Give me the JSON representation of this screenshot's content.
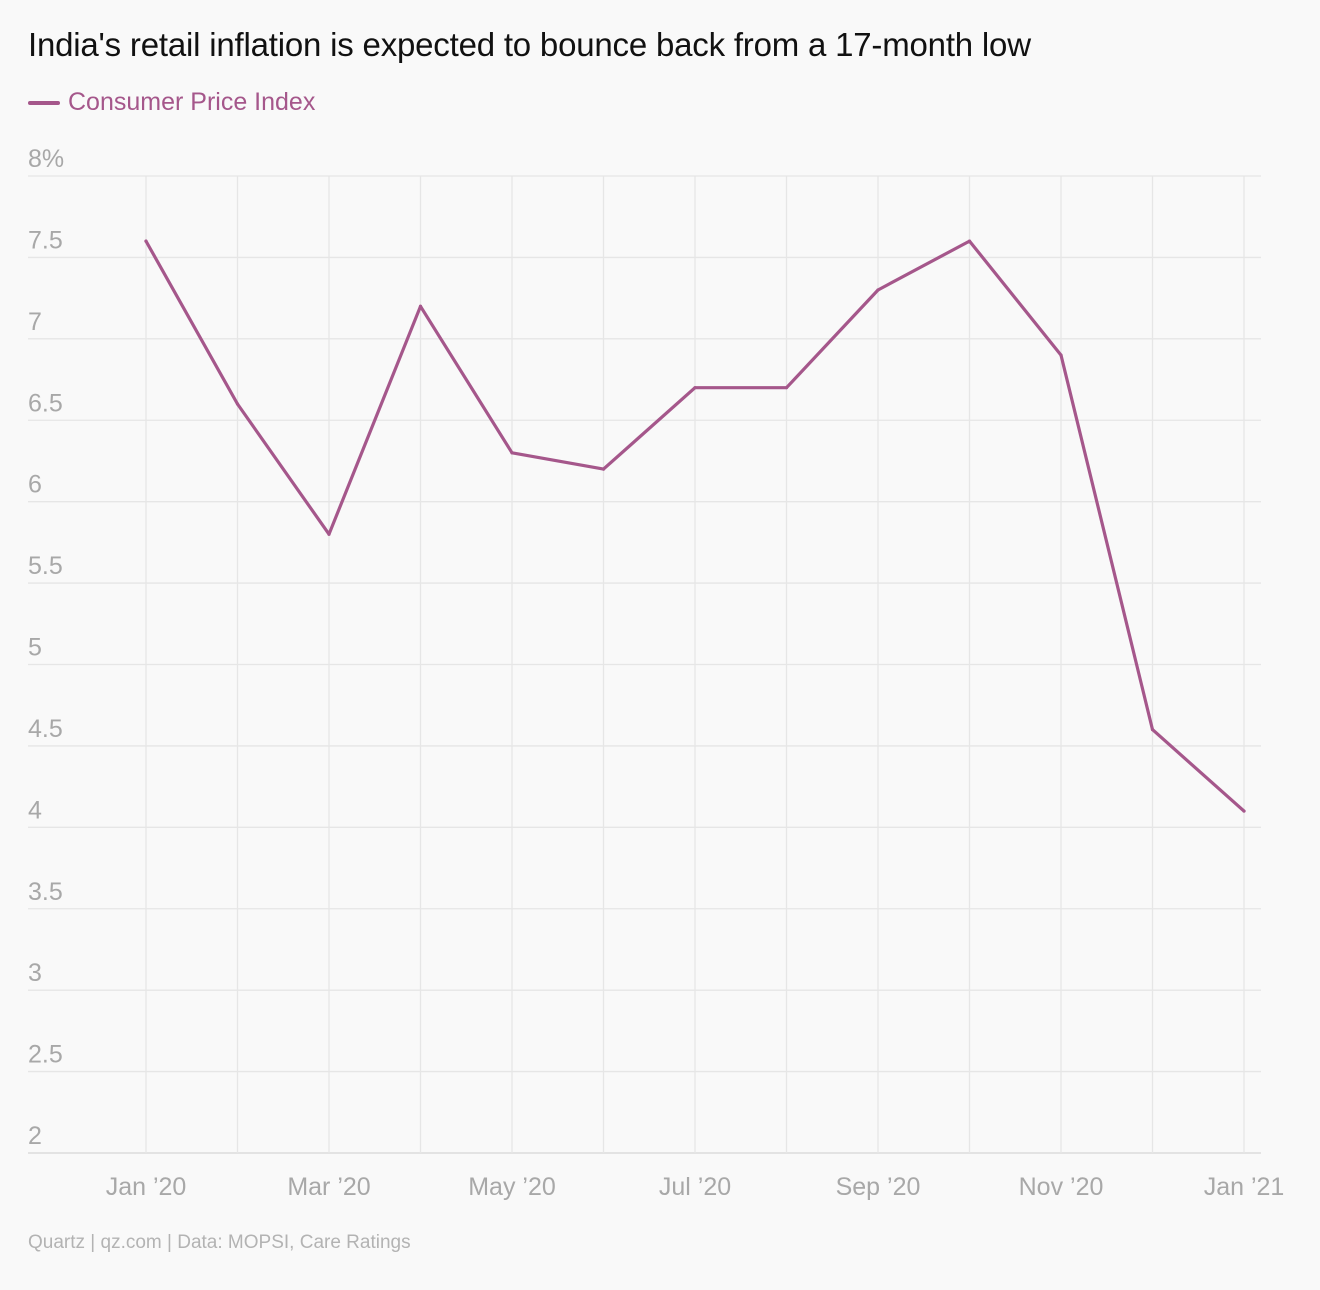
{
  "chart_data": {
    "type": "line",
    "title": "India's retail inflation is expected to bounce back from a 17-month low",
    "legend": "top-left",
    "x": [
      "Jan '20",
      "Feb '20",
      "Mar '20",
      "Apr '20",
      "May '20",
      "Jun '20",
      "Jul '20",
      "Aug '20",
      "Sep '20",
      "Oct '20",
      "Nov '20",
      "Dec '20",
      "Jan '21"
    ],
    "x_tick_labels": [
      "Jan ’20",
      "",
      "Mar ’20",
      "",
      "May ’20",
      "",
      "Jul ’20",
      "",
      "Sep ’20",
      "",
      "Nov ’20",
      "",
      "Jan ’21"
    ],
    "series": [
      {
        "name": "Consumer Price Index",
        "color": "#a5578b",
        "values": [
          7.6,
          6.6,
          5.8,
          7.2,
          6.3,
          6.2,
          6.7,
          6.7,
          7.3,
          7.6,
          6.9,
          4.6,
          4.1
        ]
      }
    ],
    "ylim": [
      2,
      8
    ],
    "y_ticks": [
      2,
      2.5,
      3,
      3.5,
      4,
      4.5,
      5,
      5.5,
      6,
      6.5,
      7,
      7.5,
      8
    ],
    "y_tick_labels": [
      "2",
      "2.5",
      "3",
      "3.5",
      "4",
      "4.5",
      "5",
      "5.5",
      "6",
      "6.5",
      "7",
      "7.5",
      "8%"
    ],
    "grid": true,
    "xlabel": "",
    "ylabel": ""
  },
  "footer": {
    "source": "Quartz | qz.com | Data: MOPSI, Care Ratings"
  }
}
